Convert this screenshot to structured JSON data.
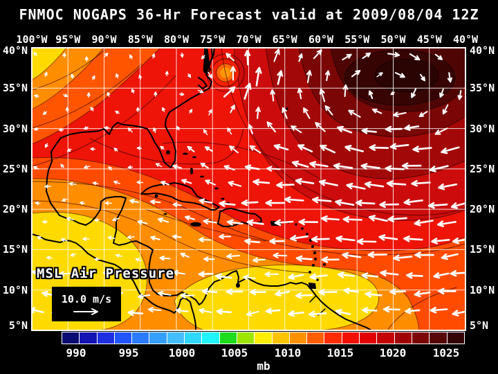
{
  "title": "FNMOC NOGAPS 36-Hr Forecast valid at 2009/08/04 12Z",
  "axes": {
    "lon_labels": [
      "100°W",
      "95°W",
      "90°W",
      "85°W",
      "80°W",
      "75°W",
      "70°W",
      "65°W",
      "60°W",
      "55°W",
      "50°W",
      "45°W",
      "40°W"
    ],
    "lat_labels": [
      "40°N",
      "35°N",
      "30°N",
      "25°N",
      "20°N",
      "15°N",
      "10°N",
      "5°N"
    ]
  },
  "map_overlay": {
    "field_label": "MSL Air Pressure",
    "wind_scale_label": "10.0 m/s"
  },
  "colorbar": {
    "unit": "mb",
    "tick_labels": [
      "990",
      "995",
      "1000",
      "1005",
      "1010",
      "1015",
      "1020",
      "1025"
    ],
    "swatch_colors": [
      "#0a0a73",
      "#1414b4",
      "#1f2fe2",
      "#2255ff",
      "#2b7cff",
      "#369fff",
      "#44bdff",
      "#30d8ff",
      "#20f4ff",
      "#1ddd1d",
      "#9ce600",
      "#ffee00",
      "#ffc400",
      "#ff9100",
      "#ff5e00",
      "#ff2d00",
      "#f21000",
      "#e00404",
      "#c40404",
      "#a10303",
      "#7c0606",
      "#570707",
      "#340404"
    ]
  },
  "colors": {
    "page_background": "#000000",
    "text": "#ffffff",
    "map_base_red": "#ee1408",
    "high_center_dark": "#2a0303",
    "low_center_orange": "#ff9800",
    "low_pressure_yellow": "#ffda00",
    "grid_line": "#ffffff",
    "coastline": "#000000",
    "wind_arrow": "#ffffff"
  }
}
